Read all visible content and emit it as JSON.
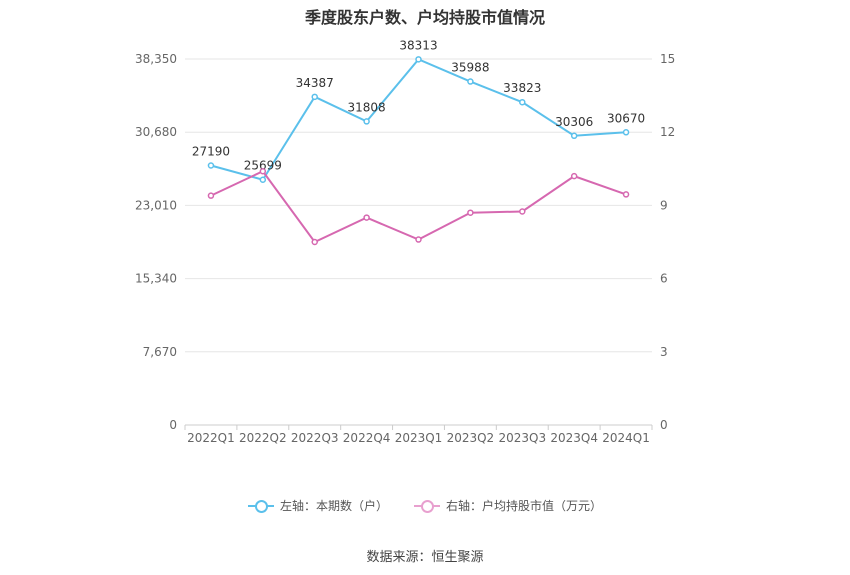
{
  "chart_data": {
    "type": "line",
    "title": "季度股东户数、户均持股市值情况",
    "categories": [
      "2022Q1",
      "2022Q2",
      "2022Q3",
      "2022Q4",
      "2023Q1",
      "2023Q2",
      "2023Q3",
      "2023Q4",
      "2024Q1"
    ],
    "left_axis": {
      "ticks": [
        "0",
        "7,670",
        "15,340",
        "23,010",
        "30,680",
        "38,350"
      ],
      "ylim": [
        0,
        38350
      ]
    },
    "right_axis": {
      "ticks": [
        "0",
        "3",
        "6",
        "9",
        "12",
        "15"
      ],
      "ylim": [
        0,
        15
      ]
    },
    "series": [
      {
        "name": "左轴：本期数（户）",
        "axis": "left",
        "color": "#5bc0eb",
        "values": [
          27190,
          25699,
          34387,
          31808,
          38313,
          35988,
          33823,
          30306,
          30670
        ],
        "labels": [
          "27190",
          "25699",
          "34387",
          "31808",
          "38313",
          "35988",
          "33823",
          "30306",
          "30670"
        ]
      },
      {
        "name": "右轴：户均持股市值（万元）",
        "axis": "right",
        "color": "#d668b0",
        "values": [
          9.4,
          10.4,
          7.5,
          8.5,
          7.6,
          8.7,
          8.75,
          10.2,
          9.45
        ]
      }
    ],
    "grid": true,
    "legend_position": "bottom"
  },
  "source_text": "数据来源：恒生聚源"
}
